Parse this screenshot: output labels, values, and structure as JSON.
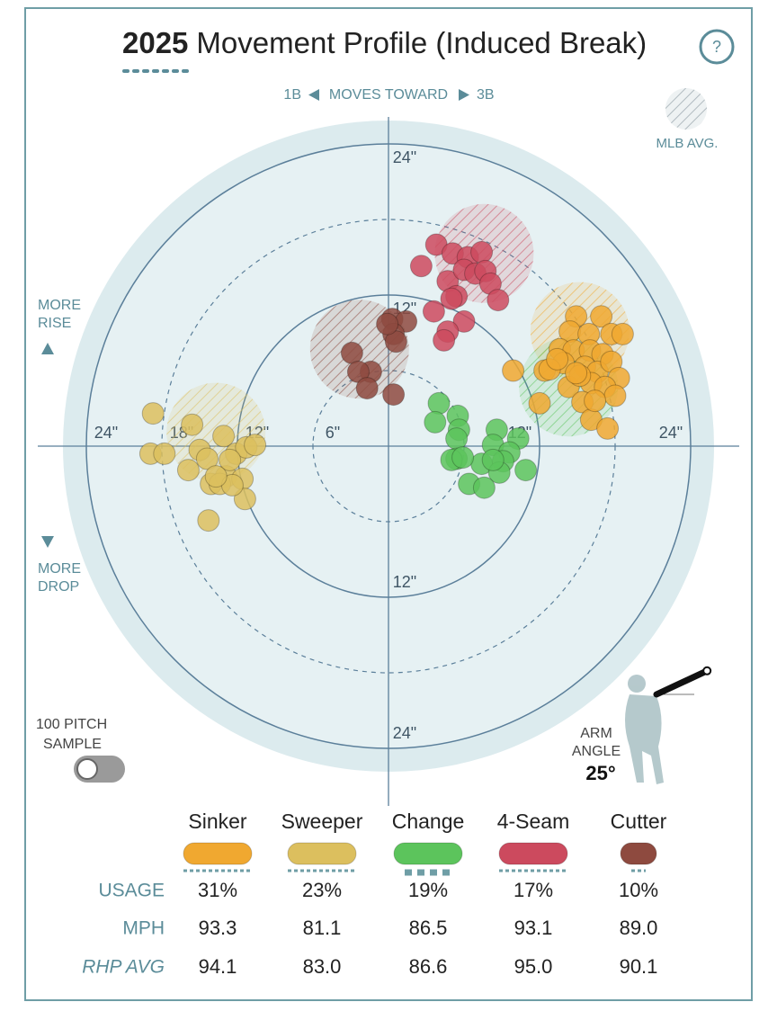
{
  "chart_data": {
    "type": "scatter",
    "title_year": "2025",
    "title": "Movement Profile (Induced Break)",
    "help": "?",
    "direction": {
      "left": "1B",
      "middle": "MOVES TOWARD",
      "right": "3B"
    },
    "avg_legend": "MLB AVG.",
    "rise_label": [
      "MORE",
      "RISE"
    ],
    "drop_label": [
      "MORE",
      "DROP"
    ],
    "sample_label": [
      "100 PITCH",
      "SAMPLE"
    ],
    "arm_angle": {
      "label": [
        "ARM",
        "ANGLE"
      ],
      "value": 25,
      "value_label": "25°"
    },
    "rings": [
      6,
      12,
      18,
      24
    ],
    "xticks": [
      {
        "value": -24,
        "label": "24\""
      },
      {
        "value": -18,
        "label": "18\""
      },
      {
        "value": -12,
        "label": "12\""
      },
      {
        "value": -6,
        "label": "6\""
      },
      {
        "value": 12,
        "label": "12\""
      },
      {
        "value": 24,
        "label": "24\""
      }
    ],
    "yticks": [
      {
        "value": 24,
        "label": "24\""
      },
      {
        "value": 12,
        "label": "12\""
      },
      {
        "value": -12,
        "label": "12\""
      },
      {
        "value": -24,
        "label": "24\""
      }
    ],
    "series": [
      {
        "name": "Sinker",
        "color": "#f0a830",
        "mlb_avg": {
          "x": 15.2,
          "y": 9.1
        },
        "x": [
          14.9,
          16.9,
          17.7,
          14.4,
          15.9,
          13.6,
          14.7,
          16.0,
          17.0,
          18.6,
          9.9,
          12.4,
          13.9,
          15.6,
          16.6,
          17.7,
          18.3,
          14.3,
          16.1,
          17.2,
          12.0,
          15.4,
          18.0,
          16.1,
          17.4,
          12.8,
          15.2,
          13.4,
          16.4,
          14.9
        ],
        "y": [
          10.3,
          10.3,
          8.9,
          9.1,
          8.9,
          7.7,
          7.6,
          7.6,
          7.3,
          8.9,
          6.0,
          6.0,
          6.6,
          6.3,
          5.9,
          6.7,
          5.4,
          4.7,
          5.0,
          4.7,
          3.4,
          3.5,
          4.0,
          2.1,
          1.4,
          6.1,
          5.6,
          6.9,
          3.6,
          5.8
        ]
      },
      {
        "name": "Sweeper",
        "color": "#dcbf5e",
        "mlb_avg": {
          "x": -13.7,
          "y": 1.1
        },
        "x": [
          -18.7,
          -15.6,
          -18.9,
          -17.8,
          -15.0,
          -13.1,
          -12.1,
          -11.3,
          -10.6,
          -15.9,
          -14.1,
          -12.9,
          -13.4,
          -11.6,
          -11.4,
          -14.3,
          -12.4,
          -14.4,
          -12.6,
          -13.7
        ],
        "y": [
          2.6,
          1.7,
          -0.6,
          -0.6,
          -0.3,
          0.8,
          -0.6,
          -0.1,
          0.1,
          -1.9,
          -3.0,
          -2.4,
          -3.0,
          -2.6,
          -4.2,
          -5.9,
          -3.1,
          -1.0,
          -1.1,
          -2.4
        ]
      },
      {
        "name": "Change",
        "color": "#5cc45c",
        "mlb_avg": {
          "x": 14.3,
          "y": 4.7
        },
        "x": [
          4.0,
          3.7,
          5.5,
          5.6,
          5.4,
          8.6,
          10.3,
          8.3,
          9.6,
          5.4,
          5.0,
          7.4,
          9.1,
          10.9,
          8.8,
          6.4,
          7.6,
          5.9,
          8.3
        ],
        "y": [
          3.4,
          1.9,
          2.4,
          1.3,
          0.6,
          1.3,
          0.6,
          0.1,
          -0.5,
          -1.0,
          -1.1,
          -1.4,
          -1.2,
          -1.9,
          -2.1,
          -3.0,
          -3.3,
          -0.9,
          -1.1
        ]
      },
      {
        "name": "4-Seam",
        "color": "#cc4a5e",
        "mlb_avg": {
          "x": 7.6,
          "y": 15.3
        },
        "x": [
          3.8,
          5.1,
          6.3,
          7.4,
          2.6,
          4.7,
          6.0,
          6.9,
          7.7,
          8.1,
          8.7,
          5.4,
          5.0,
          3.6,
          6.0,
          4.7,
          4.4
        ],
        "y": [
          16.0,
          15.3,
          15.0,
          15.4,
          14.3,
          13.1,
          14.0,
          13.7,
          13.9,
          12.9,
          11.6,
          11.9,
          11.7,
          10.7,
          9.9,
          9.1,
          8.4
        ]
      },
      {
        "name": "Cutter",
        "color": "#8e4a3f",
        "mlb_avg": {
          "x": -2.3,
          "y": 7.7
        },
        "x": [
          0.3,
          1.4,
          0.4,
          0.6,
          -2.9,
          -1.4,
          -2.4,
          -1.7,
          0.4,
          -0.1
        ],
        "y": [
          10.1,
          9.9,
          8.9,
          8.3,
          7.4,
          5.9,
          5.9,
          4.6,
          4.1,
          9.7
        ]
      }
    ]
  },
  "table": {
    "row_labels": [
      "USAGE",
      "MPH",
      "RHP AVG"
    ],
    "rows": [
      [
        "31%",
        "23%",
        "19%",
        "17%",
        "10%"
      ],
      [
        "93.3",
        "81.1",
        "86.5",
        "93.1",
        "89.0"
      ],
      [
        "94.1",
        "83.0",
        "86.6",
        "95.0",
        "90.1"
      ]
    ]
  }
}
